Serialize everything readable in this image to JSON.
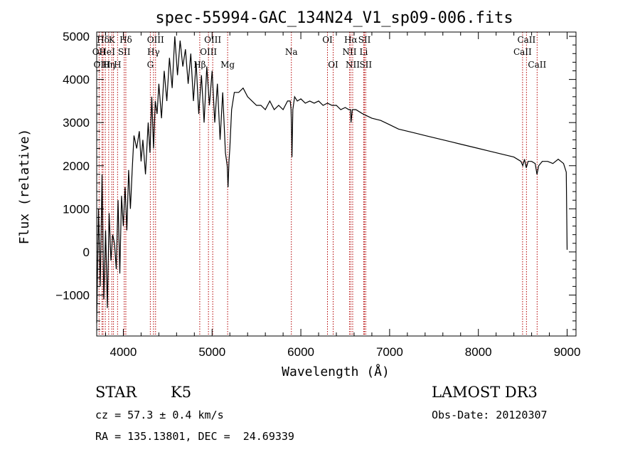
{
  "chart_data": {
    "type": "line",
    "title": "spec-55994-GAC_134N24_V1_sp09-006.fits",
    "xlabel": "Wavelength (Å)",
    "ylabel": "Flux (relative)",
    "xlim": [
      3700,
      9100
    ],
    "ylim": [
      -1950,
      5100
    ],
    "x_ticks": [
      4000,
      5000,
      6000,
      7000,
      8000,
      9000
    ],
    "x_tick_labels": [
      "4000",
      "5000",
      "6000",
      "7000",
      "8000",
      "9000"
    ],
    "y_ticks": [
      -1000,
      0,
      1000,
      2000,
      3000,
      4000,
      5000
    ],
    "y_tick_labels": [
      "−1000",
      "0",
      "1000",
      "2000",
      "3000",
      "4000",
      "5000"
    ],
    "series": [
      {
        "name": "flux",
        "x": [
          3700,
          3720,
          3740,
          3760,
          3780,
          3800,
          3820,
          3840,
          3860,
          3880,
          3900,
          3920,
          3940,
          3960,
          3980,
          4000,
          4020,
          4040,
          4060,
          4080,
          4100,
          4120,
          4150,
          4180,
          4200,
          4220,
          4250,
          4280,
          4300,
          4320,
          4340,
          4360,
          4380,
          4400,
          4430,
          4460,
          4490,
          4520,
          4550,
          4580,
          4610,
          4640,
          4670,
          4700,
          4730,
          4760,
          4790,
          4820,
          4850,
          4880,
          4910,
          4940,
          4970,
          5000,
          5030,
          5060,
          5090,
          5120,
          5150,
          5170,
          5180,
          5190,
          5200,
          5220,
          5250,
          5300,
          5350,
          5400,
          5450,
          5500,
          5550,
          5600,
          5650,
          5700,
          5750,
          5800,
          5850,
          5880,
          5890,
          5895,
          5900,
          5910,
          5930,
          5960,
          6000,
          6050,
          6100,
          6150,
          6200,
          6250,
          6300,
          6350,
          6400,
          6450,
          6500,
          6540,
          6560,
          6565,
          6580,
          6620,
          6700,
          6800,
          6900,
          7000,
          7100,
          7200,
          7300,
          7400,
          7500,
          7600,
          7700,
          7800,
          7900,
          8000,
          8100,
          8200,
          8300,
          8400,
          8480,
          8500,
          8520,
          8540,
          8560,
          8600,
          8640,
          8660,
          8680,
          8720,
          8780,
          8840,
          8900,
          8960,
          8990,
          9000
        ],
        "y": [
          -1650,
          1000,
          -800,
          1800,
          -1100,
          500,
          -1300,
          900,
          -200,
          400,
          200,
          -400,
          1200,
          -500,
          1300,
          600,
          1500,
          500,
          1900,
          1000,
          1900,
          2700,
          2400,
          2800,
          2100,
          2600,
          1800,
          3000,
          2300,
          3600,
          2400,
          3500,
          3200,
          3900,
          3100,
          4200,
          3500,
          4500,
          3800,
          5000,
          4100,
          4900,
          4300,
          4700,
          3900,
          4600,
          3500,
          4400,
          3200,
          4100,
          3000,
          4300,
          3400,
          4200,
          3000,
          3900,
          2600,
          3700,
          2300,
          2000,
          1500,
          2100,
          2400,
          3300,
          3700,
          3700,
          3800,
          3600,
          3500,
          3400,
          3400,
          3300,
          3500,
          3300,
          3400,
          3300,
          3500,
          3500,
          3300,
          2800,
          2200,
          3300,
          3600,
          3500,
          3550,
          3450,
          3500,
          3450,
          3500,
          3400,
          3450,
          3400,
          3400,
          3300,
          3350,
          3300,
          3300,
          3000,
          3300,
          3300,
          3200,
          3100,
          3050,
          2950,
          2850,
          2800,
          2750,
          2700,
          2650,
          2600,
          2550,
          2500,
          2450,
          2400,
          2350,
          2300,
          2250,
          2200,
          2100,
          2000,
          2150,
          1950,
          2100,
          2100,
          2050,
          1800,
          2000,
          2100,
          2100,
          2050,
          2150,
          2050,
          1850,
          50
        ]
      }
    ],
    "line_markers": [
      {
        "label": "Hδ",
        "wavelength": 3772,
        "row": 1
      },
      {
        "label": "OII",
        "wavelength": 3727,
        "row": 2
      },
      {
        "label": "OIII",
        "wavelength": 3760,
        "row": 3
      },
      {
        "label": "He",
        "wavelength": 3797,
        "row": 2
      },
      {
        "label": "Hη",
        "wavelength": 3835,
        "row": 3
      },
      {
        "label": "K",
        "wavelength": 3870,
        "row": 1
      },
      {
        "label": "H",
        "wavelength": 3935,
        "row": 3
      },
      {
        "label": "I",
        "wavelength": 3889,
        "row": 2
      },
      {
        "label": "Hδ",
        "wavelength": 4028,
        "row": 1
      },
      {
        "label": "SII",
        "wavelength": 4010,
        "row": 2
      },
      {
        "label": "OIII",
        "wavelength": 4363,
        "row": 1
      },
      {
        "label": "Hγ",
        "wavelength": 4340,
        "row": 2
      },
      {
        "label": "G",
        "wavelength": 4304,
        "row": 3
      },
      {
        "label": "Hβ",
        "wavelength": 4861,
        "row": 3
      },
      {
        "label": "OIII",
        "wavelength": 4959,
        "row": 2
      },
      {
        "label": "OIII",
        "wavelength": 5007,
        "row": 1
      },
      {
        "label": "Mg",
        "wavelength": 5175,
        "row": 3
      },
      {
        "label": "Na",
        "wavelength": 5893,
        "row": 2
      },
      {
        "label": "OI",
        "wavelength": 6300,
        "row": 1
      },
      {
        "label": "OI",
        "wavelength": 6364,
        "row": 3
      },
      {
        "label": "Hα",
        "wavelength": 6563,
        "row": 1
      },
      {
        "label": "NII",
        "wavelength": 6548,
        "row": 2
      },
      {
        "label": "NII",
        "wavelength": 6584,
        "row": 3
      },
      {
        "label": "SII",
        "wavelength": 6717,
        "row": 1
      },
      {
        "label": "Li",
        "wavelength": 6708,
        "row": 2
      },
      {
        "label": "SII",
        "wavelength": 6731,
        "row": 3
      },
      {
        "label": "CaII",
        "wavelength": 8542,
        "row": 1
      },
      {
        "label": "CaII",
        "wavelength": 8498,
        "row": 2
      },
      {
        "label": "CaII",
        "wavelength": 8662,
        "row": 3
      }
    ],
    "line_color": "#000000",
    "marker_color": "#b30000"
  },
  "info": {
    "class": "STAR",
    "subclass": "K5",
    "survey": "LAMOST DR3",
    "redshift_text": "cz = 57.3 ± 0.4 km/s",
    "obs_date": "Obs-Date: 20120307",
    "coords": "RA = 135.13801, DEC =  24.69339"
  }
}
